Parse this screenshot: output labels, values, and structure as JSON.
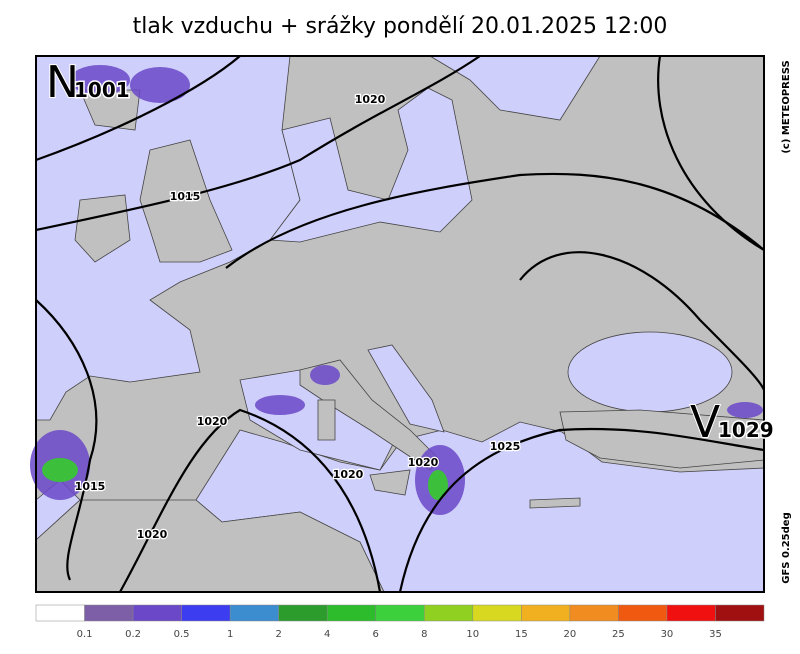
{
  "title": "tlak vzduchu + srážky pondělí 20.01.2025 12:00",
  "copyright": "(c) METEOPRESS",
  "model": "GFS 0.25deg",
  "pressure_centers": [
    {
      "letter": "N",
      "value": "1001"
    },
    {
      "letter": "V",
      "value": "1029"
    }
  ],
  "isobar_labels": [
    "1020",
    "1015",
    "1020",
    "1015",
    "1020",
    "1020",
    "1020",
    "1025"
  ],
  "legend": {
    "labels": [
      "0.1",
      "0.2",
      "0.5",
      "1",
      "2",
      "4",
      "6",
      "8",
      "10",
      "15",
      "20",
      "25",
      "30",
      "35"
    ],
    "colors": [
      "#ffffff",
      "#7d5fa8",
      "#6a48c8",
      "#3c3cf0",
      "#3c8cd0",
      "#2c9c2c",
      "#2cbc2c",
      "#3cd03c",
      "#90d020",
      "#d8d820",
      "#f0b020",
      "#f08c20",
      "#f05a10",
      "#f01010",
      "#a01010"
    ]
  }
}
